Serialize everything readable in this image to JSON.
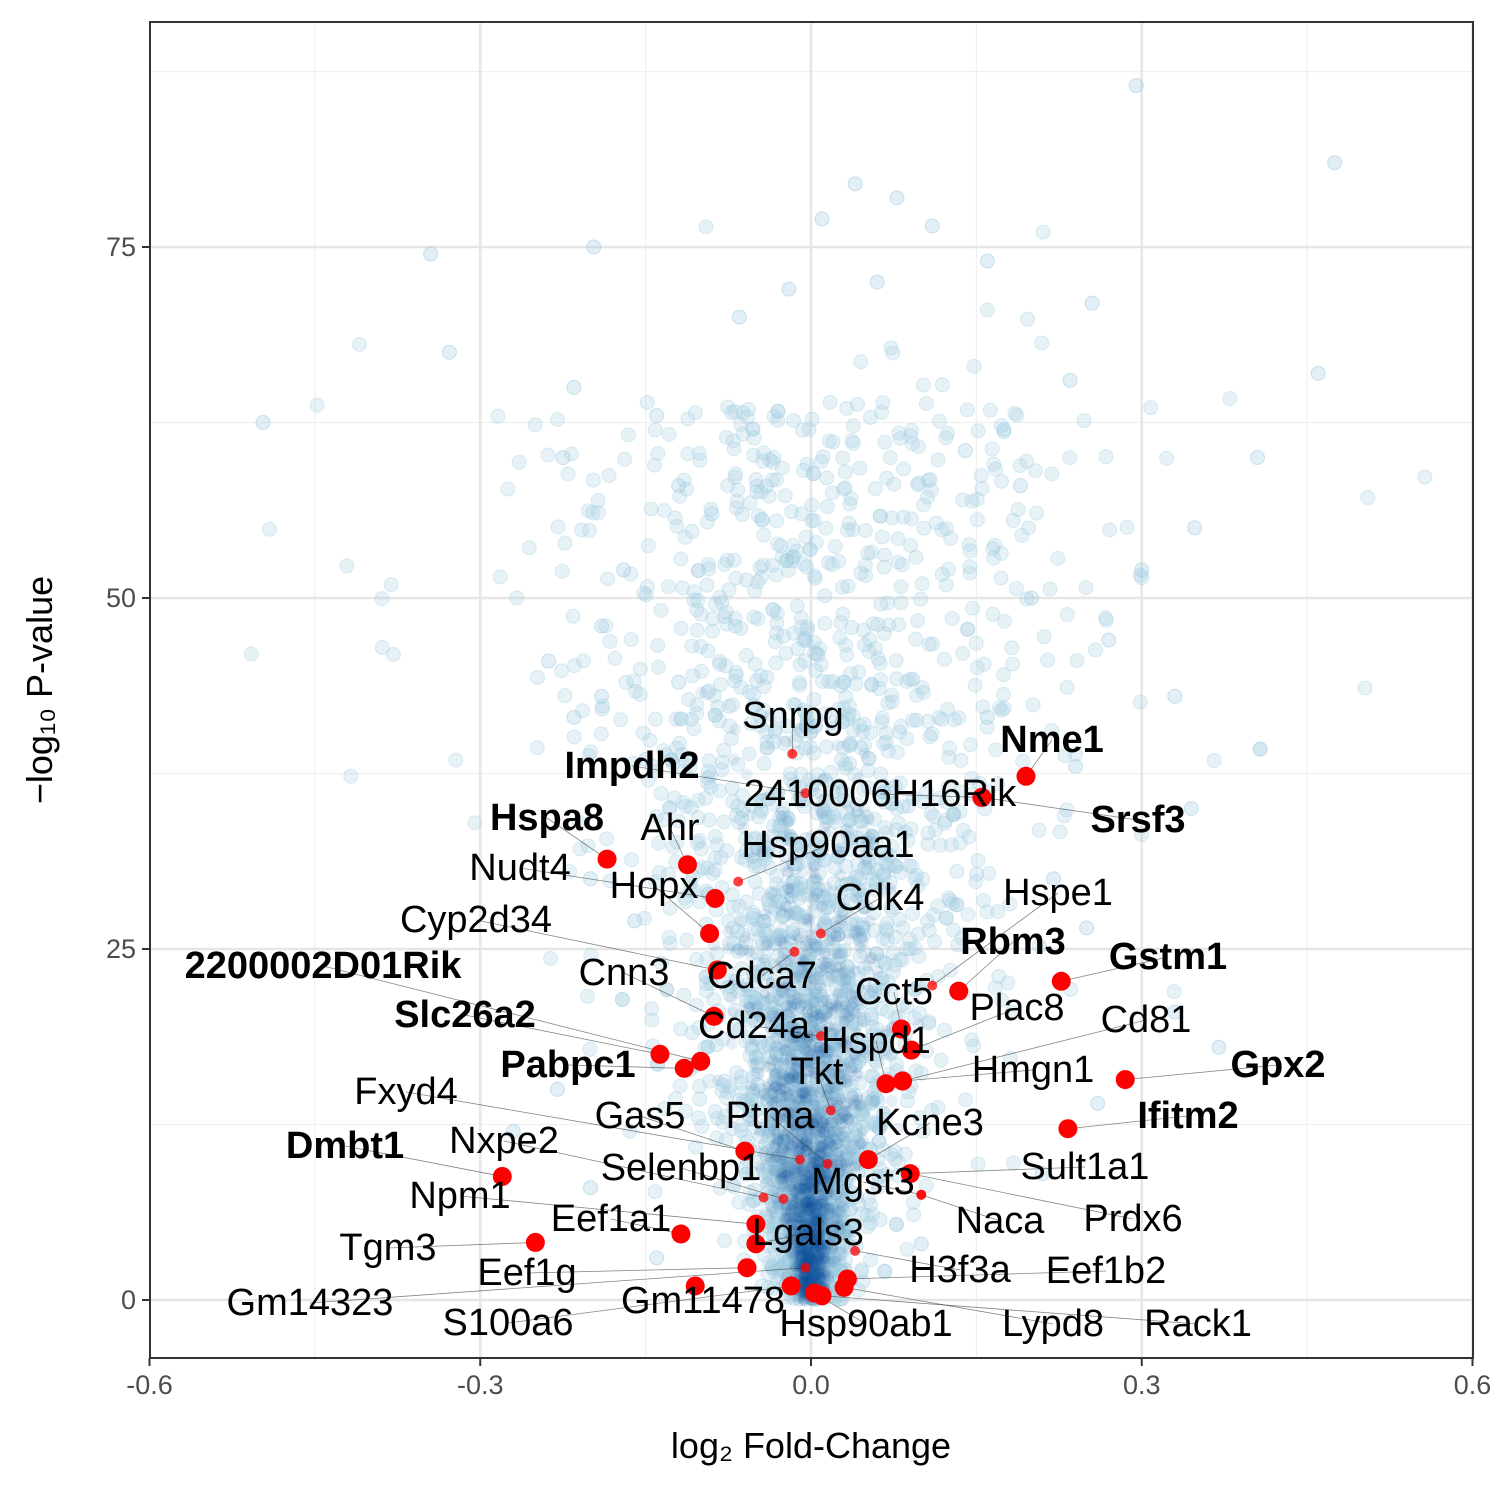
{
  "chart_data": {
    "type": "scatter",
    "title": "",
    "xlabel": "log₂ Fold-Change",
    "ylabel": "−log₁₀ P-value",
    "xlim": [
      -0.6,
      0.6
    ],
    "ylim": [
      -4,
      91
    ],
    "x_ticks": [
      -0.6,
      -0.3,
      0.0,
      0.3,
      0.6
    ],
    "x_tick_labels": [
      "-0.6",
      "-0.3",
      "0.0",
      "0.3",
      "0.6"
    ],
    "y_ticks": [
      0,
      25,
      50,
      75
    ],
    "y_tick_labels": [
      "0",
      "25",
      "50",
      "75"
    ],
    "grid": true,
    "legend": "none",
    "colors": {
      "background_points": "#9ecae1",
      "dense_core": "#08519c",
      "highlight": "#ff0000",
      "grid_major": "#e6e6e6",
      "grid_minor": "#f0f0f0"
    },
    "background_points_sample": [
      {
        "x": -0.497,
        "y": 62.5
      },
      {
        "x": -0.345,
        "y": 74.5
      },
      {
        "x": -0.328,
        "y": 67.5
      },
      {
        "x": -0.197,
        "y": 75.0
      },
      {
        "x": -0.215,
        "y": 65.0
      },
      {
        "x": -0.225,
        "y": 60.0
      },
      {
        "x": -0.238,
        "y": 45.5
      },
      {
        "x": -0.215,
        "y": 41.5
      },
      {
        "x": -0.19,
        "y": 48.0
      },
      {
        "x": -0.19,
        "y": 43.0
      },
      {
        "x": -0.12,
        "y": 44.0
      },
      {
        "x": 0.295,
        "y": 86.5
      },
      {
        "x": 0.475,
        "y": 81.0
      },
      {
        "x": 0.46,
        "y": 66.0
      },
      {
        "x": 0.405,
        "y": 60.0
      },
      {
        "x": 0.348,
        "y": 55.0
      },
      {
        "x": 0.255,
        "y": 71.0
      },
      {
        "x": 0.235,
        "y": 65.5
      },
      {
        "x": 0.33,
        "y": 43.0
      },
      {
        "x": 0.345,
        "y": 35.0
      },
      {
        "x": 0.3,
        "y": 52.0
      },
      {
        "x": 0.27,
        "y": 47.0
      },
      {
        "x": 0.04,
        "y": 79.5
      },
      {
        "x": 0.078,
        "y": 78.5
      },
      {
        "x": 0.01,
        "y": 77.0
      },
      {
        "x": -0.02,
        "y": 72.0
      },
      {
        "x": 0.11,
        "y": 76.5
      },
      {
        "x": 0.16,
        "y": 74.0
      },
      {
        "x": -0.065,
        "y": 70.0
      },
      {
        "x": 0.06,
        "y": 72.5
      },
      {
        "x": -0.14,
        "y": 63.0
      },
      {
        "x": -0.12,
        "y": 58.0
      },
      {
        "x": -0.09,
        "y": 56.0
      },
      {
        "x": 0.14,
        "y": 60.5
      },
      {
        "x": 0.175,
        "y": 62.0
      },
      {
        "x": 0.19,
        "y": 58.0
      },
      {
        "x": -0.17,
        "y": 52.0
      },
      {
        "x": 0.2,
        "y": 50.0
      },
      {
        "x": -0.15,
        "y": 38.5
      },
      {
        "x": 0.16,
        "y": 41.5
      },
      {
        "x": 0.24,
        "y": 38.0
      },
      {
        "x": -0.2,
        "y": 30.0
      },
      {
        "x": 0.25,
        "y": 26.5
      },
      {
        "x": 0.22,
        "y": 30.0
      },
      {
        "x": -0.16,
        "y": 27.0
      },
      {
        "x": 0.37,
        "y": 18.0
      },
      {
        "x": 0.33,
        "y": 20.5
      },
      {
        "x": -0.23,
        "y": 15.0
      },
      {
        "x": 0.26,
        "y": 14.0
      },
      {
        "x": -0.27,
        "y": 12.0
      },
      {
        "x": 0.21,
        "y": 9.0
      },
      {
        "x": -0.2,
        "y": 8.0
      },
      {
        "x": 0.1,
        "y": 4.0
      },
      {
        "x": -0.14,
        "y": 3.0
      }
    ],
    "highlight_points": [
      {
        "gene": "Snrpg",
        "x": -0.017,
        "y": 38.9,
        "bold": false,
        "shown": false
      },
      {
        "gene": "Nme1",
        "x": 0.195,
        "y": 37.3,
        "bold": true,
        "shown": true
      },
      {
        "gene": "Impdh2",
        "x": -0.005,
        "y": 36.1,
        "bold": true,
        "shown": false
      },
      {
        "gene": "2410006H16Rik",
        "x": 0.155,
        "y": 35.8,
        "bold": false,
        "shown": true
      },
      {
        "gene": "Srsf3",
        "x": 0.155,
        "y": 35.8,
        "bold": true,
        "shown": true
      },
      {
        "gene": "Hspa8",
        "x": -0.185,
        "y": 31.4,
        "bold": true,
        "shown": true
      },
      {
        "gene": "Ahr",
        "x": -0.112,
        "y": 31.0,
        "bold": false,
        "shown": true
      },
      {
        "gene": "Hsp90aa1",
        "x": -0.066,
        "y": 29.8,
        "bold": false,
        "shown": false
      },
      {
        "gene": "Nudt4",
        "x": -0.087,
        "y": 28.6,
        "bold": false,
        "shown": true
      },
      {
        "gene": "Hopx",
        "x": -0.092,
        "y": 26.1,
        "bold": false,
        "shown": true
      },
      {
        "gene": "Cdk4",
        "x": 0.009,
        "y": 26.1,
        "bold": false,
        "shown": false
      },
      {
        "gene": "Hspe1",
        "x": 0.11,
        "y": 22.4,
        "bold": false,
        "shown": false
      },
      {
        "gene": "Cyp2d34",
        "x": -0.085,
        "y": 23.5,
        "bold": false,
        "shown": true
      },
      {
        "gene": "Cdca7",
        "x": -0.015,
        "y": 24.8,
        "bold": false,
        "shown": false
      },
      {
        "gene": "Rbm3",
        "x": 0.134,
        "y": 22.0,
        "bold": true,
        "shown": true
      },
      {
        "gene": "Gstm1",
        "x": 0.227,
        "y": 22.7,
        "bold": true,
        "shown": true
      },
      {
        "gene": "2200002D01Rik",
        "x": -0.1,
        "y": 17.0,
        "bold": true,
        "shown": true
      },
      {
        "gene": "Cnn3",
        "x": -0.088,
        "y": 20.2,
        "bold": false,
        "shown": true
      },
      {
        "gene": "Cct5",
        "x": 0.082,
        "y": 19.3,
        "bold": false,
        "shown": true
      },
      {
        "gene": "Plac8",
        "x": 0.091,
        "y": 17.8,
        "bold": false,
        "shown": true
      },
      {
        "gene": "Cd24a",
        "x": 0.009,
        "y": 18.8,
        "bold": false,
        "shown": false
      },
      {
        "gene": "Slc26a2",
        "x": -0.137,
        "y": 17.5,
        "bold": true,
        "shown": true
      },
      {
        "gene": "Cd81",
        "x": 0.083,
        "y": 15.6,
        "bold": false,
        "shown": true
      },
      {
        "gene": "Hspd1",
        "x": 0.068,
        "y": 15.4,
        "bold": false,
        "shown": true
      },
      {
        "gene": "Pabpc1",
        "x": -0.115,
        "y": 16.5,
        "bold": true,
        "shown": true
      },
      {
        "gene": "Gpx2",
        "x": 0.285,
        "y": 15.7,
        "bold": true,
        "shown": true
      },
      {
        "gene": "Hmgn1",
        "x": 0.083,
        "y": 15.6,
        "bold": false,
        "shown": true
      },
      {
        "gene": "Tkt",
        "x": 0.018,
        "y": 13.5,
        "bold": false,
        "shown": false
      },
      {
        "gene": "Fxyd4",
        "x": -0.01,
        "y": 10.0,
        "bold": false,
        "shown": false
      },
      {
        "gene": "Ifitm2",
        "x": 0.233,
        "y": 12.2,
        "bold": true,
        "shown": true
      },
      {
        "gene": "Gas5",
        "x": -0.06,
        "y": 10.6,
        "bold": false,
        "shown": true
      },
      {
        "gene": "Ptma",
        "x": 0.015,
        "y": 9.7,
        "bold": false,
        "shown": false
      },
      {
        "gene": "Kcne3",
        "x": 0.052,
        "y": 10.0,
        "bold": false,
        "shown": true
      },
      {
        "gene": "Dmbt1",
        "x": -0.28,
        "y": 8.8,
        "bold": true,
        "shown": true
      },
      {
        "gene": "Nxpe2",
        "x": -0.043,
        "y": 7.3,
        "bold": false,
        "shown": false
      },
      {
        "gene": "Sult1a1",
        "x": 0.09,
        "y": 9.0,
        "bold": false,
        "shown": true
      },
      {
        "gene": "Selenbp1",
        "x": -0.025,
        "y": 7.2,
        "bold": false,
        "shown": false
      },
      {
        "gene": "Mgst3",
        "x": 0.1,
        "y": 7.5,
        "bold": false,
        "shown": false
      },
      {
        "gene": "Npm1",
        "x": -0.05,
        "y": 5.4,
        "bold": false,
        "shown": true
      },
      {
        "gene": "Naca",
        "x": 0.1,
        "y": 7.5,
        "bold": false,
        "shown": false
      },
      {
        "gene": "Prdx6",
        "x": 0.09,
        "y": 9.0,
        "bold": false,
        "shown": false
      },
      {
        "gene": "Eef1a1",
        "x": -0.118,
        "y": 4.7,
        "bold": false,
        "shown": true
      },
      {
        "gene": "Tgm3",
        "x": -0.25,
        "y": 4.1,
        "bold": false,
        "shown": true
      },
      {
        "gene": "Lgals3",
        "x": -0.05,
        "y": 4.0,
        "bold": false,
        "shown": true
      },
      {
        "gene": "Eef1g",
        "x": -0.058,
        "y": 2.3,
        "bold": false,
        "shown": true
      },
      {
        "gene": "H3f3a",
        "x": 0.04,
        "y": 3.5,
        "bold": false,
        "shown": false
      },
      {
        "gene": "Eef1b2",
        "x": 0.033,
        "y": 1.5,
        "bold": false,
        "shown": true
      },
      {
        "gene": "Gm14323",
        "x": -0.005,
        "y": 2.3,
        "bold": false,
        "shown": false
      },
      {
        "gene": "Gm11478",
        "x": -0.105,
        "y": 1.0,
        "bold": false,
        "shown": true
      },
      {
        "gene": "S100a6",
        "x": -0.018,
        "y": 1.0,
        "bold": false,
        "shown": true
      },
      {
        "gene": "Hsp90ab1",
        "x": 0.003,
        "y": 0.5,
        "bold": false,
        "shown": true
      },
      {
        "gene": "Lypd8",
        "x": 0.03,
        "y": 0.9,
        "bold": false,
        "shown": true
      },
      {
        "gene": "Rack1",
        "x": 0.01,
        "y": 0.3,
        "bold": false,
        "shown": true
      }
    ]
  }
}
